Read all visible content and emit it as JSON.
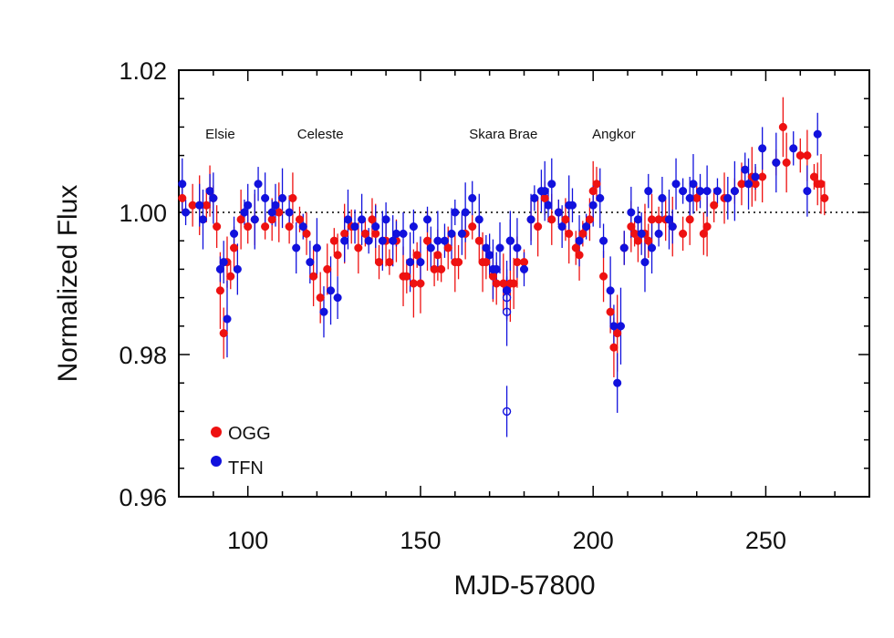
{
  "chart_data": {
    "type": "scatter",
    "xlabel": "MJD-57800",
    "ylabel": "Normalized Flux",
    "xlim": [
      80,
      280
    ],
    "ylim": [
      0.96,
      1.02
    ],
    "xticks": [
      100,
      150,
      200,
      250
    ],
    "xtick_labels": [
      "100",
      "150",
      "200",
      "250"
    ],
    "yticks": [
      0.96,
      0.98,
      1.0,
      1.02
    ],
    "ytick_labels": [
      "0.96",
      "0.98",
      "1.00",
      "1.02"
    ],
    "reference_line": {
      "y": 1.0,
      "style": "dotted"
    },
    "legend": {
      "placement": "bottom-left"
    },
    "annotations": [
      {
        "text": "Elsie",
        "x": 92,
        "y": 1.011
      },
      {
        "text": "Celeste",
        "x": 121,
        "y": 1.011
      },
      {
        "text": "Skara Brae",
        "x": 174,
        "y": 1.011
      },
      {
        "text": "Angkor",
        "x": 206,
        "y": 1.011
      }
    ],
    "series": [
      {
        "name": "OGG",
        "color": "#ee1111",
        "marker": "filled-circle",
        "points": [
          [
            81,
            1.002
          ],
          [
            84,
            1.001
          ],
          [
            86,
            1.001
          ],
          [
            88,
            1.001
          ],
          [
            89,
            1.003
          ],
          [
            90,
            1.002
          ],
          [
            91,
            0.998
          ],
          [
            92,
            0.989
          ],
          [
            93,
            0.983
          ],
          [
            94,
            0.993
          ],
          [
            95,
            0.991
          ],
          [
            96,
            0.995
          ],
          [
            98,
            0.999
          ],
          [
            100,
            0.998
          ],
          [
            102,
            0.999
          ],
          [
            105,
            0.998
          ],
          [
            107,
            0.999
          ],
          [
            109,
            1.0
          ],
          [
            112,
            0.998
          ],
          [
            113,
            1.002
          ],
          [
            115,
            0.999
          ],
          [
            117,
            0.997
          ],
          [
            119,
            0.991
          ],
          [
            121,
            0.988
          ],
          [
            123,
            0.992
          ],
          [
            125,
            0.996
          ],
          [
            126,
            0.994
          ],
          [
            128,
            0.997
          ],
          [
            130,
            0.998
          ],
          [
            132,
            0.995
          ],
          [
            134,
            0.997
          ],
          [
            136,
            0.999
          ],
          [
            137,
            0.997
          ],
          [
            138,
            0.993
          ],
          [
            140,
            0.996
          ],
          [
            141,
            0.993
          ],
          [
            143,
            0.996
          ],
          [
            145,
            0.991
          ],
          [
            146,
            0.991
          ],
          [
            148,
            0.99
          ],
          [
            149,
            0.994
          ],
          [
            150,
            0.99
          ],
          [
            152,
            0.996
          ],
          [
            154,
            0.992
          ],
          [
            155,
            0.994
          ],
          [
            156,
            0.992
          ],
          [
            158,
            0.995
          ],
          [
            160,
            0.993
          ],
          [
            161,
            0.993
          ],
          [
            163,
            0.997
          ],
          [
            165,
            0.998
          ],
          [
            167,
            0.996
          ],
          [
            168,
            0.993
          ],
          [
            169,
            0.993
          ],
          [
            171,
            0.991
          ],
          [
            172,
            0.99
          ],
          [
            174,
            0.99
          ],
          [
            176,
            0.99
          ],
          [
            177,
            0.99
          ],
          [
            178,
            0.993
          ],
          [
            180,
            0.993
          ],
          [
            182,
            0.999
          ],
          [
            184,
            0.998
          ],
          [
            186,
            1.002
          ],
          [
            188,
            0.999
          ],
          [
            190,
            1.0
          ],
          [
            192,
            0.999
          ],
          [
            193,
            0.997
          ],
          [
            195,
            0.995
          ],
          [
            196,
            0.994
          ],
          [
            197,
            0.997
          ],
          [
            199,
            0.999
          ],
          [
            200,
            1.003
          ],
          [
            201,
            1.004
          ],
          [
            203,
            0.991
          ],
          [
            205,
            0.986
          ],
          [
            206,
            0.981
          ],
          [
            207,
            0.983
          ],
          [
            209,
            0.995
          ],
          [
            211,
            0.998
          ],
          [
            212,
            0.997
          ],
          [
            213,
            0.996
          ],
          [
            215,
            0.997
          ],
          [
            216,
            0.996
          ],
          [
            217,
            0.999
          ],
          [
            219,
            0.999
          ],
          [
            221,
            0.999
          ],
          [
            223,
            0.998
          ],
          [
            226,
            0.997
          ],
          [
            228,
            0.999
          ],
          [
            230,
            1.002
          ],
          [
            232,
            0.997
          ],
          [
            233,
            0.998
          ],
          [
            235,
            1.001
          ],
          [
            238,
            1.002
          ],
          [
            241,
            1.003
          ],
          [
            243,
            1.004
          ],
          [
            246,
            1.005
          ],
          [
            247,
            1.004
          ],
          [
            249,
            1.005
          ],
          [
            253,
            1.007
          ],
          [
            255,
            1.012
          ],
          [
            256,
            1.007
          ],
          [
            260,
            1.008
          ],
          [
            262,
            1.008
          ],
          [
            264,
            1.005
          ],
          [
            265,
            1.004
          ],
          [
            266,
            1.004
          ],
          [
            267,
            1.002
          ]
        ]
      },
      {
        "name": "TFN",
        "color": "#1111dd",
        "marker": "filled-circle",
        "points": [
          [
            81,
            1.004
          ],
          [
            82,
            1.0
          ],
          [
            86,
            1.001
          ],
          [
            87,
            0.999
          ],
          [
            89,
            1.003
          ],
          [
            90,
            1.002
          ],
          [
            92,
            0.992
          ],
          [
            93,
            0.993
          ],
          [
            94,
            0.985
          ],
          [
            96,
            0.997
          ],
          [
            97,
            0.992
          ],
          [
            99,
            1.0
          ],
          [
            100,
            1.001
          ],
          [
            102,
            0.999
          ],
          [
            103,
            1.004
          ],
          [
            105,
            1.002
          ],
          [
            107,
            1.0
          ],
          [
            108,
            1.001
          ],
          [
            110,
            1.002
          ],
          [
            112,
            1.0
          ],
          [
            114,
            0.995
          ],
          [
            116,
            0.998
          ],
          [
            118,
            0.993
          ],
          [
            120,
            0.995
          ],
          [
            122,
            0.986
          ],
          [
            124,
            0.989
          ],
          [
            126,
            0.988
          ],
          [
            128,
            0.996
          ],
          [
            129,
            0.999
          ],
          [
            131,
            0.998
          ],
          [
            133,
            0.999
          ],
          [
            135,
            0.996
          ],
          [
            137,
            0.998
          ],
          [
            139,
            0.996
          ],
          [
            140,
            0.999
          ],
          [
            142,
            0.996
          ],
          [
            143,
            0.997
          ],
          [
            145,
            0.997
          ],
          [
            147,
            0.993
          ],
          [
            148,
            0.998
          ],
          [
            150,
            0.993
          ],
          [
            152,
            0.999
          ],
          [
            153,
            0.995
          ],
          [
            155,
            0.996
          ],
          [
            157,
            0.996
          ],
          [
            159,
            0.997
          ],
          [
            160,
            1.0
          ],
          [
            162,
            0.997
          ],
          [
            163,
            1.0
          ],
          [
            165,
            1.002
          ],
          [
            167,
            0.999
          ],
          [
            169,
            0.995
          ],
          [
            170,
            0.994
          ],
          [
            171,
            0.992
          ],
          [
            172,
            0.992
          ],
          [
            173,
            0.995
          ],
          [
            175,
            0.989
          ],
          [
            176,
            0.996
          ],
          [
            178,
            0.995
          ],
          [
            180,
            0.992
          ],
          [
            182,
            0.999
          ],
          [
            183,
            1.002
          ],
          [
            185,
            1.003
          ],
          [
            186,
            1.003
          ],
          [
            187,
            1.001
          ],
          [
            188,
            1.004
          ],
          [
            190,
            1.0
          ],
          [
            191,
            0.998
          ],
          [
            193,
            1.001
          ],
          [
            194,
            1.001
          ],
          [
            196,
            0.996
          ],
          [
            198,
            0.998
          ],
          [
            200,
            1.001
          ],
          [
            202,
            1.002
          ],
          [
            203,
            0.996
          ],
          [
            205,
            0.989
          ],
          [
            206,
            0.984
          ],
          [
            207,
            0.976
          ],
          [
            208,
            0.984
          ],
          [
            209,
            0.995
          ],
          [
            211,
            1.0
          ],
          [
            213,
            0.999
          ],
          [
            214,
            0.997
          ],
          [
            215,
            0.993
          ],
          [
            216,
            1.003
          ],
          [
            217,
            0.995
          ],
          [
            219,
            0.997
          ],
          [
            220,
            1.002
          ],
          [
            222,
            0.999
          ],
          [
            223,
            0.998
          ],
          [
            224,
            1.004
          ],
          [
            226,
            1.003
          ],
          [
            228,
            1.002
          ],
          [
            229,
            1.004
          ],
          [
            231,
            1.003
          ],
          [
            233,
            1.003
          ],
          [
            236,
            1.003
          ],
          [
            239,
            1.002
          ],
          [
            241,
            1.003
          ],
          [
            244,
            1.006
          ],
          [
            245,
            1.004
          ],
          [
            247,
            1.005
          ],
          [
            249,
            1.009
          ],
          [
            253,
            1.007
          ],
          [
            258,
            1.009
          ],
          [
            262,
            1.003
          ],
          [
            265,
            1.011
          ]
        ]
      },
      {
        "name": "",
        "color": "#1111dd",
        "marker": "open-circle",
        "points": [
          [
            175,
            0.972
          ],
          [
            175,
            0.986
          ],
          [
            175,
            0.988
          ],
          [
            175,
            0.989
          ],
          [
            176,
            0.996
          ]
        ]
      }
    ]
  }
}
